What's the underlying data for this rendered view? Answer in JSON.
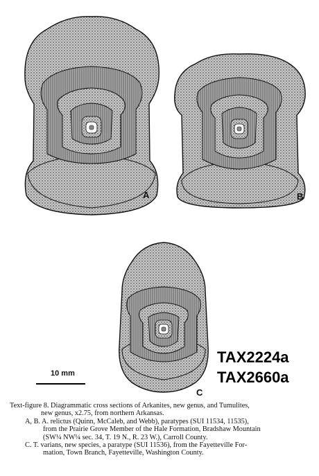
{
  "figure": {
    "panel_labels": {
      "a": "A",
      "b": "B",
      "c": "C"
    },
    "scale_bar_label": "10 mm",
    "tax_codes": [
      "TAX2224a",
      "TAX2660a"
    ]
  },
  "caption": {
    "line1": "Text-figure 8.  Diagrammatic cross sections of Arkanites, new genus, and Tumulites,",
    "line2": "new genus, x2.75, from northern Arkansas.",
    "line3": "A, B.   A. relictus (Quinn, McCaleb, and Webb), paratypes (SUI 11534, 11535),",
    "line4": "from the Prairie Grove Member of the Hale Formation, Bradshaw Mountain",
    "line5": "(SW¼ NW¼ sec. 34, T. 19 N., R. 23 W.), Carroll County.",
    "line6": "C.   T. varians, new species, a paratype (SUI 11536), from the Fayetteville For-",
    "line7": "mation, Town Branch, Fayetteville, Washington County."
  }
}
